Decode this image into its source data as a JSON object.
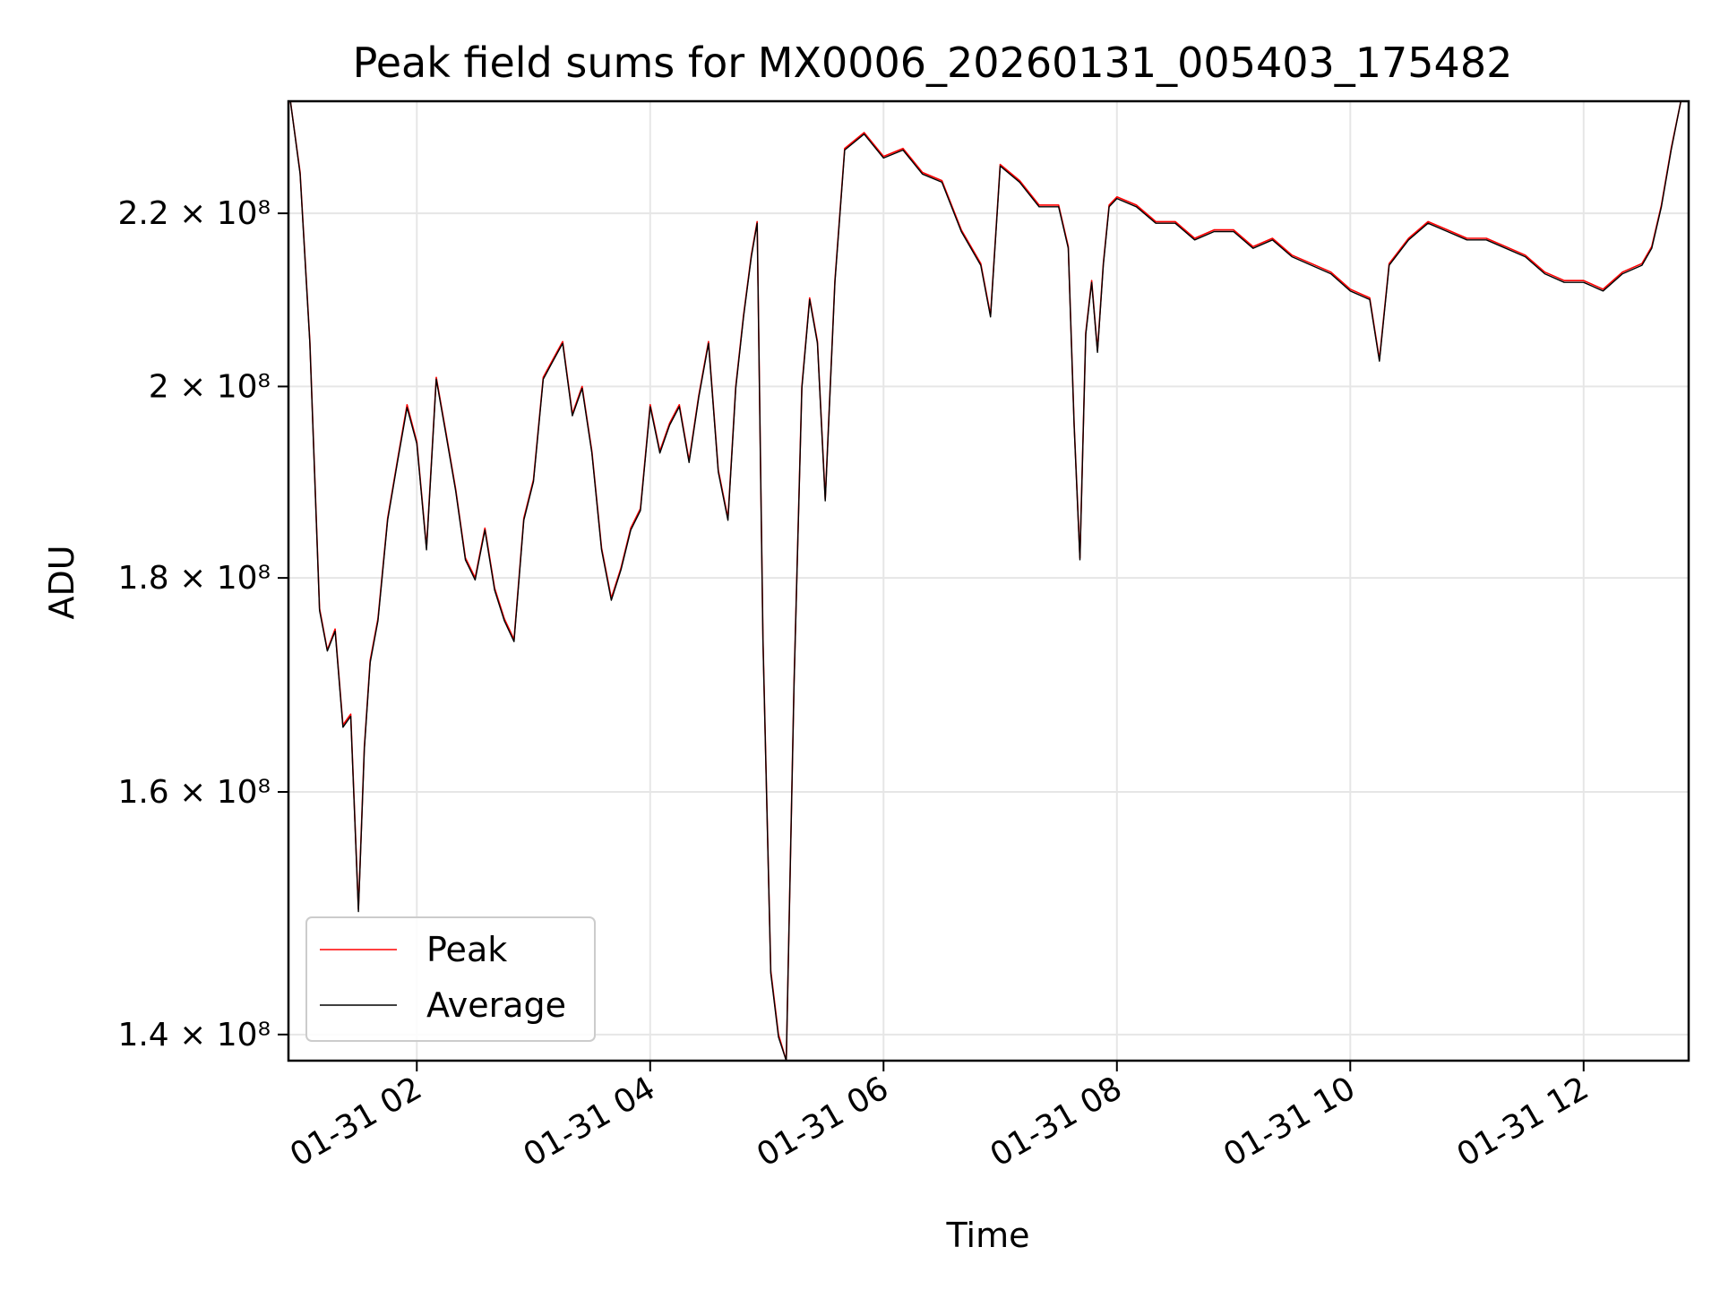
{
  "chart_data": {
    "type": "line",
    "title": "Peak field sums for MX0006_20260131_005403_175482",
    "xlabel": "Time",
    "ylabel": "ADU",
    "y_scale": "log",
    "grid": true,
    "legend_position": "lower-left",
    "x_ticks": [
      "01-31 02",
      "01-31 04",
      "01-31 06",
      "01-31 08",
      "01-31 10",
      "01-31 12"
    ],
    "y_ticks": [
      {
        "value": 140000000,
        "label": "1.4 × 10⁸"
      },
      {
        "value": 160000000,
        "label": "1.6 × 10⁸"
      },
      {
        "value": 180000000,
        "label": "1.8 × 10⁸"
      },
      {
        "value": 200000000,
        "label": "2 × 10⁸"
      },
      {
        "value": 220000000,
        "label": "2.2 × 10⁸"
      }
    ],
    "xlim": [
      "01-31 00:54",
      "01-31 12:54"
    ],
    "ylim": [
      138000000,
      234000000
    ],
    "series": [
      {
        "name": "Peak",
        "color": "#ff0000",
        "x": [
          "01-31 00:55",
          "01-31 01:00",
          "01-31 01:05",
          "01-31 01:10",
          "01-31 01:14",
          "01-31 01:18",
          "01-31 01:22",
          "01-31 01:26",
          "01-31 01:30",
          "01-31 01:33",
          "01-31 01:36",
          "01-31 01:40",
          "01-31 01:45",
          "01-31 01:50",
          "01-31 01:55",
          "01-31 02:00",
          "01-31 02:05",
          "01-31 02:10",
          "01-31 02:15",
          "01-31 02:20",
          "01-31 02:25",
          "01-31 02:30",
          "01-31 02:35",
          "01-31 02:40",
          "01-31 02:45",
          "01-31 02:50",
          "01-31 02:55",
          "01-31 03:00",
          "01-31 03:05",
          "01-31 03:10",
          "01-31 03:15",
          "01-31 03:20",
          "01-31 03:25",
          "01-31 03:30",
          "01-31 03:35",
          "01-31 03:40",
          "01-31 03:45",
          "01-31 03:50",
          "01-31 03:55",
          "01-31 04:00",
          "01-31 04:05",
          "01-31 04:10",
          "01-31 04:15",
          "01-31 04:20",
          "01-31 04:25",
          "01-31 04:30",
          "01-31 04:35",
          "01-31 04:40",
          "01-31 04:44",
          "01-31 04:48",
          "01-31 04:52",
          "01-31 04:55",
          "01-31 04:58",
          "01-31 05:02",
          "01-31 05:06",
          "01-31 05:10",
          "01-31 05:14",
          "01-31 05:18",
          "01-31 05:22",
          "01-31 05:26",
          "01-31 05:30",
          "01-31 05:35",
          "01-31 05:40",
          "01-31 05:50",
          "01-31 06:00",
          "01-31 06:10",
          "01-31 06:20",
          "01-31 06:30",
          "01-31 06:40",
          "01-31 06:50",
          "01-31 06:55",
          "01-31 07:00",
          "01-31 07:10",
          "01-31 07:20",
          "01-31 07:30",
          "01-31 07:35",
          "01-31 07:38",
          "01-31 07:41",
          "01-31 07:44",
          "01-31 07:47",
          "01-31 07:50",
          "01-31 07:53",
          "01-31 07:56",
          "01-31 08:00",
          "01-31 08:10",
          "01-31 08:20",
          "01-31 08:30",
          "01-31 08:40",
          "01-31 08:50",
          "01-31 09:00",
          "01-31 09:10",
          "01-31 09:20",
          "01-31 09:30",
          "01-31 09:40",
          "01-31 09:50",
          "01-31 10:00",
          "01-31 10:10",
          "01-31 10:15",
          "01-31 10:20",
          "01-31 10:30",
          "01-31 10:40",
          "01-31 10:50",
          "01-31 11:00",
          "01-31 11:10",
          "01-31 11:20",
          "01-31 11:30",
          "01-31 11:40",
          "01-31 11:50",
          "01-31 12:00",
          "01-31 12:10",
          "01-31 12:20",
          "01-31 12:30",
          "01-31 12:35",
          "01-31 12:40",
          "01-31 12:45",
          "01-31 12:50",
          "01-31 12:54"
        ],
        "y": [
          234000000,
          225000000,
          205000000,
          177000000,
          173000000,
          175000000,
          166000000,
          167000000,
          150000000,
          164000000,
          172000000,
          176000000,
          186000000,
          192000000,
          198000000,
          194000000,
          183000000,
          201000000,
          195000000,
          189000000,
          182000000,
          180000000,
          185000000,
          179000000,
          176000000,
          174000000,
          186000000,
          190000000,
          201000000,
          203000000,
          205000000,
          197000000,
          200000000,
          193000000,
          183000000,
          178000000,
          181000000,
          185000000,
          187000000,
          198000000,
          193000000,
          196000000,
          198000000,
          192000000,
          199000000,
          205000000,
          191000000,
          186000000,
          200000000,
          208000000,
          215000000,
          219000000,
          174000000,
          145000000,
          140000000,
          138000000,
          170000000,
          200000000,
          210000000,
          205000000,
          188000000,
          212000000,
          228000000,
          230000000,
          227000000,
          228000000,
          225000000,
          224000000,
          218000000,
          214000000,
          208000000,
          226000000,
          224000000,
          221000000,
          221000000,
          216000000,
          196000000,
          182000000,
          206000000,
          212000000,
          204000000,
          214000000,
          221000000,
          222000000,
          221000000,
          219000000,
          219000000,
          217000000,
          218000000,
          218000000,
          216000000,
          217000000,
          215000000,
          214000000,
          213000000,
          211000000,
          210000000,
          203000000,
          214000000,
          217000000,
          219000000,
          218000000,
          217000000,
          217000000,
          216000000,
          215000000,
          213000000,
          212000000,
          212000000,
          211000000,
          213000000,
          214000000,
          216000000,
          221000000,
          228000000,
          234000000,
          234000000
        ]
      },
      {
        "name": "Average",
        "color": "#000000",
        "x": [
          "01-31 00:55",
          "01-31 01:00",
          "01-31 01:05",
          "01-31 01:10",
          "01-31 01:14",
          "01-31 01:18",
          "01-31 01:22",
          "01-31 01:26",
          "01-31 01:30",
          "01-31 01:33",
          "01-31 01:36",
          "01-31 01:40",
          "01-31 01:45",
          "01-31 01:50",
          "01-31 01:55",
          "01-31 02:00",
          "01-31 02:05",
          "01-31 02:10",
          "01-31 02:15",
          "01-31 02:20",
          "01-31 02:25",
          "01-31 02:30",
          "01-31 02:35",
          "01-31 02:40",
          "01-31 02:45",
          "01-31 02:50",
          "01-31 02:55",
          "01-31 03:00",
          "01-31 03:05",
          "01-31 03:10",
          "01-31 03:15",
          "01-31 03:20",
          "01-31 03:25",
          "01-31 03:30",
          "01-31 03:35",
          "01-31 03:40",
          "01-31 03:45",
          "01-31 03:50",
          "01-31 03:55",
          "01-31 04:00",
          "01-31 04:05",
          "01-31 04:10",
          "01-31 04:15",
          "01-31 04:20",
          "01-31 04:25",
          "01-31 04:30",
          "01-31 04:35",
          "01-31 04:40",
          "01-31 04:44",
          "01-31 04:48",
          "01-31 04:52",
          "01-31 04:55",
          "01-31 04:58",
          "01-31 05:02",
          "01-31 05:06",
          "01-31 05:10",
          "01-31 05:14",
          "01-31 05:18",
          "01-31 05:22",
          "01-31 05:26",
          "01-31 05:30",
          "01-31 05:35",
          "01-31 05:40",
          "01-31 05:50",
          "01-31 06:00",
          "01-31 06:10",
          "01-31 06:20",
          "01-31 06:30",
          "01-31 06:40",
          "01-31 06:50",
          "01-31 06:55",
          "01-31 07:00",
          "01-31 07:10",
          "01-31 07:20",
          "01-31 07:30",
          "01-31 07:35",
          "01-31 07:38",
          "01-31 07:41",
          "01-31 07:44",
          "01-31 07:47",
          "01-31 07:50",
          "01-31 07:53",
          "01-31 07:56",
          "01-31 08:00",
          "01-31 08:10",
          "01-31 08:20",
          "01-31 08:30",
          "01-31 08:40",
          "01-31 08:50",
          "01-31 09:00",
          "01-31 09:10",
          "01-31 09:20",
          "01-31 09:30",
          "01-31 09:40",
          "01-31 09:50",
          "01-31 10:00",
          "01-31 10:10",
          "01-31 10:15",
          "01-31 10:20",
          "01-31 10:30",
          "01-31 10:40",
          "01-31 10:50",
          "01-31 11:00",
          "01-31 11:10",
          "01-31 11:20",
          "01-31 11:30",
          "01-31 11:40",
          "01-31 11:50",
          "01-31 12:00",
          "01-31 12:10",
          "01-31 12:20",
          "01-31 12:30",
          "01-31 12:35",
          "01-31 12:40",
          "01-31 12:45",
          "01-31 12:50",
          "01-31 12:54"
        ],
        "y": [
          234000000,
          224800000,
          204800000,
          176800000,
          172900000,
          174800000,
          165800000,
          166800000,
          149800000,
          163800000,
          171800000,
          175800000,
          185800000,
          191800000,
          197700000,
          193800000,
          182800000,
          200800000,
          194800000,
          188800000,
          181800000,
          179800000,
          184800000,
          178800000,
          175800000,
          173800000,
          185800000,
          189800000,
          200800000,
          202800000,
          204800000,
          196800000,
          199800000,
          192800000,
          182800000,
          177800000,
          180800000,
          184800000,
          186800000,
          197800000,
          192800000,
          195800000,
          197800000,
          191800000,
          198800000,
          204800000,
          190800000,
          185800000,
          199800000,
          207800000,
          214800000,
          218800000,
          173800000,
          144800000,
          139800000,
          137900000,
          169800000,
          199800000,
          209800000,
          204800000,
          187800000,
          211800000,
          227800000,
          229800000,
          226800000,
          227800000,
          224800000,
          223800000,
          217800000,
          213800000,
          207800000,
          225800000,
          223800000,
          220800000,
          220800000,
          215800000,
          195800000,
          181800000,
          205800000,
          211800000,
          203800000,
          213800000,
          220800000,
          221800000,
          220800000,
          218800000,
          218800000,
          216800000,
          217800000,
          217800000,
          215800000,
          216800000,
          214800000,
          213800000,
          212800000,
          210800000,
          209800000,
          202800000,
          213800000,
          216800000,
          218800000,
          217800000,
          216800000,
          216800000,
          215800000,
          214800000,
          212800000,
          211800000,
          211800000,
          210800000,
          212800000,
          213800000,
          215800000,
          220800000,
          227800000,
          234000000,
          234000000
        ]
      }
    ]
  }
}
